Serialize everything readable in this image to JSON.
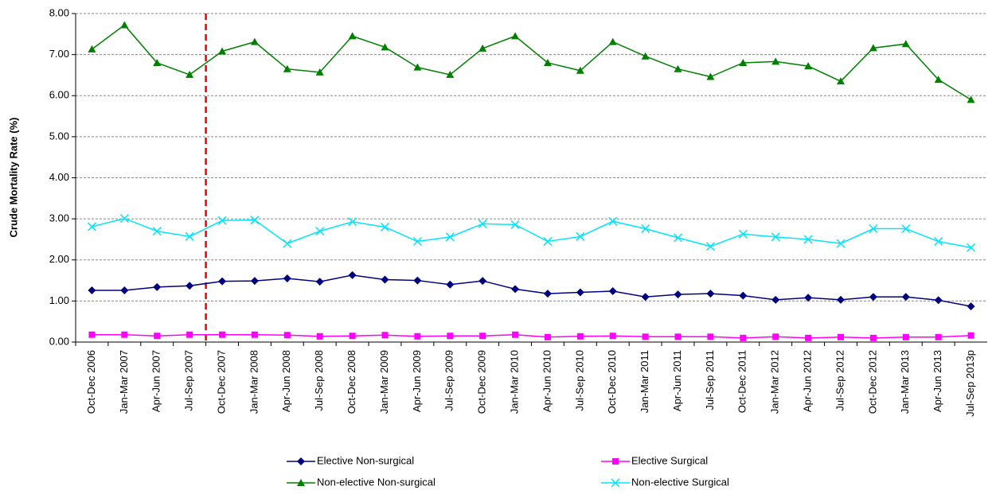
{
  "chart_data": {
    "type": "line",
    "y_label": "Crude Mortality Rate  (%)",
    "categories": [
      "Oct-Dec 2006",
      "Jan-Mar 2007",
      "Apr-Jun 2007",
      "Jul-Sep 2007",
      "Oct-Dec 2007",
      "Jan-Mar 2008",
      "Apr-Jun 2008",
      "Jul-Sep 2008",
      "Oct-Dec 2008",
      "Jan-Mar 2009",
      "Apr-Jun 2009",
      "Jul-Sep 2009",
      "Oct-Dec 2009",
      "Jan-Mar 2010",
      "Apr-Jun 2010",
      "Jul-Sep 2010",
      "Oct-Dec 2010",
      "Jan-Mar 2011",
      "Apr-Jun 2011",
      "Jul-Sep 2011",
      "Oct-Dec 2011",
      "Jan-Mar 2012",
      "Apr-Jun 2012",
      "Jul-Sep 2012",
      "Oct-Dec 2012",
      "Jan-Mar 2013",
      "Apr-Jun 2013",
      "Jul-Sep 2013p"
    ],
    "series": [
      {
        "name": "Elective Non-surgical",
        "color": "#000080",
        "marker": "diamond",
        "values": [
          1.26,
          1.26,
          1.34,
          1.37,
          1.48,
          1.49,
          1.55,
          1.47,
          1.63,
          1.52,
          1.5,
          1.4,
          1.49,
          1.29,
          1.18,
          1.21,
          1.24,
          1.1,
          1.16,
          1.18,
          1.13,
          1.03,
          1.08,
          1.03,
          1.1,
          1.1,
          1.02,
          0.87
        ]
      },
      {
        "name": "Elective Surgical",
        "color": "#ff00ff",
        "marker": "square",
        "values": [
          0.18,
          0.18,
          0.15,
          0.18,
          0.18,
          0.18,
          0.17,
          0.14,
          0.15,
          0.17,
          0.14,
          0.15,
          0.15,
          0.18,
          0.12,
          0.14,
          0.15,
          0.13,
          0.13,
          0.13,
          0.1,
          0.13,
          0.1,
          0.12,
          0.1,
          0.12,
          0.12,
          0.16
        ]
      },
      {
        "name": "Non-elective Non-surgical",
        "color": "#008000",
        "marker": "triangle",
        "values": [
          7.13,
          7.72,
          6.8,
          6.51,
          7.08,
          7.31,
          6.65,
          6.57,
          7.45,
          7.18,
          6.69,
          6.51,
          7.15,
          7.45,
          6.8,
          6.61,
          7.31,
          6.96,
          6.65,
          6.46,
          6.8,
          6.83,
          6.72,
          6.35,
          7.16,
          7.26,
          6.39,
          5.9
        ]
      },
      {
        "name": "Non-elective Surgical",
        "color": "#00e5ff",
        "marker": "x",
        "values": [
          2.81,
          3.01,
          2.7,
          2.57,
          2.96,
          2.97,
          2.4,
          2.7,
          2.93,
          2.8,
          2.45,
          2.56,
          2.88,
          2.86,
          2.45,
          2.57,
          2.94,
          2.76,
          2.54,
          2.33,
          2.63,
          2.56,
          2.5,
          2.4,
          2.76,
          2.76,
          2.45,
          2.3
        ]
      }
    ],
    "ylim": [
      0,
      8
    ],
    "yticks": [
      {
        "value": 0,
        "label": "0.00"
      },
      {
        "value": 1,
        "label": "1.00"
      },
      {
        "value": 2,
        "label": "2.00"
      },
      {
        "value": 3,
        "label": "3.00"
      },
      {
        "value": 4,
        "label": "4.00"
      },
      {
        "value": 5,
        "label": "5.00"
      },
      {
        "value": 6,
        "label": "6.00"
      },
      {
        "value": 7,
        "label": "7.00"
      },
      {
        "value": 8,
        "label": "8.00"
      }
    ],
    "grid": true
  }
}
